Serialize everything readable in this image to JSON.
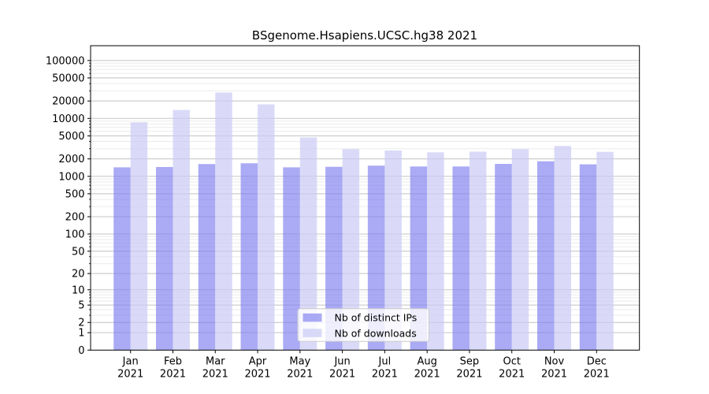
{
  "chart_data": {
    "type": "bar",
    "title": "BSgenome.Hsapiens.UCSC.hg38 2021",
    "categories": [
      "Jan",
      "Feb",
      "Mar",
      "Apr",
      "May",
      "Jun",
      "Jul",
      "Aug",
      "Sep",
      "Oct",
      "Nov",
      "Dec"
    ],
    "category_year": "2021",
    "series": [
      {
        "name": "Nb of distinct IPs",
        "color": "#aaaaf5",
        "fill": "rgba(124,124,240,0.65)",
        "values": [
          1430,
          1450,
          1630,
          1680,
          1430,
          1460,
          1530,
          1480,
          1480,
          1640,
          1820,
          1610
        ]
      },
      {
        "name": "Nb of downloads",
        "color": "#dbdbf8",
        "fill": "rgba(203,203,245,0.7)",
        "values": [
          8600,
          14000,
          28000,
          17500,
          4700,
          2950,
          2800,
          2600,
          2670,
          2950,
          3350,
          2650
        ]
      }
    ],
    "y_axis": {
      "scale": "log1p",
      "ticks": [
        0,
        1,
        2,
        5,
        10,
        20,
        50,
        100,
        200,
        500,
        1000,
        2000,
        5000,
        10000,
        20000,
        50000,
        100000
      ],
      "max": 180000
    },
    "x_axis": {
      "tick_label_years": [
        "2021",
        "2021",
        "2021",
        "2021",
        "2021",
        "2021",
        "2021",
        "2021",
        "2021",
        "2021",
        "2021",
        "2021"
      ]
    },
    "legend": {
      "position": "lower center"
    },
    "grid": {
      "major_color": "#c5c5c5",
      "minor_color": "#ebebeb",
      "on": true
    },
    "colors": {
      "spine": "#000000",
      "background": "#ffffff"
    }
  }
}
